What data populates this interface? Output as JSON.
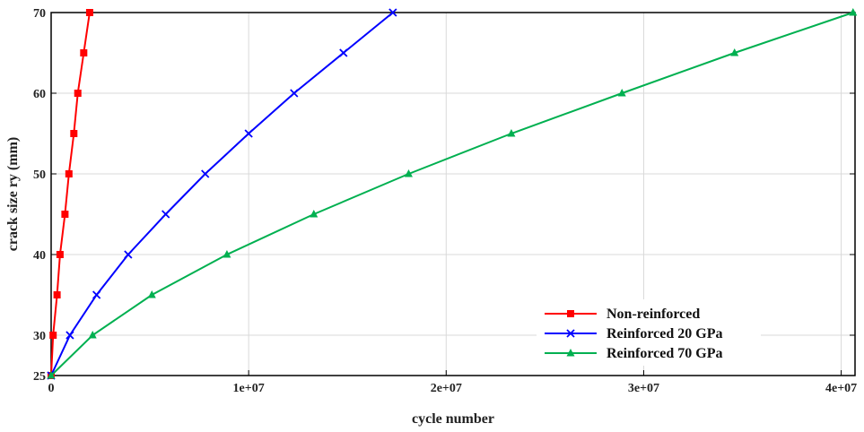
{
  "chart_data": {
    "type": "line",
    "title": "",
    "xlabel": "cycle number",
    "ylabel": "crack size ry (mm)",
    "xlim": [
      0,
      40700000
    ],
    "ylim": [
      25,
      70
    ],
    "x_ticks": [
      {
        "value": 0,
        "label": "0"
      },
      {
        "value": 10000000,
        "label": "1e+07"
      },
      {
        "value": 20000000,
        "label": "2e+07"
      },
      {
        "value": 30000000,
        "label": "3e+07"
      },
      {
        "value": 40000000,
        "label": "4e+07"
      }
    ],
    "y_ticks": [
      {
        "value": 25,
        "label": "25"
      },
      {
        "value": 30,
        "label": "30"
      },
      {
        "value": 40,
        "label": "40"
      },
      {
        "value": 50,
        "label": "50"
      },
      {
        "value": 60,
        "label": "60"
      },
      {
        "value": 70,
        "label": "70"
      }
    ],
    "grid": true,
    "legend_position": "bottom-right",
    "series": [
      {
        "name": "Non-reinforced",
        "color": "#ff0000",
        "marker": "square",
        "x": [
          0,
          100000,
          300000,
          450000,
          700000,
          900000,
          1150000,
          1350000,
          1650000,
          1950000
        ],
        "y": [
          25,
          30,
          35,
          40,
          45,
          50,
          55,
          60,
          65,
          70
        ]
      },
      {
        "name": "Reinforced 20 GPa",
        "color": "#0000ff",
        "marker": "x",
        "x": [
          0,
          950000,
          2300000,
          3900000,
          5800000,
          7800000,
          10000000,
          12300000,
          14800000,
          17300000
        ],
        "y": [
          25,
          30,
          35,
          40,
          45,
          50,
          55,
          60,
          65,
          70
        ]
      },
      {
        "name": "Reinforced 70 GPa",
        "color": "#00b050",
        "marker": "triangle",
        "x": [
          0,
          2100000,
          5100000,
          8900000,
          13300000,
          18100000,
          23300000,
          28900000,
          34600000,
          40600000
        ],
        "y": [
          25,
          30,
          35,
          40,
          45,
          50,
          55,
          60,
          65,
          70
        ]
      }
    ]
  }
}
